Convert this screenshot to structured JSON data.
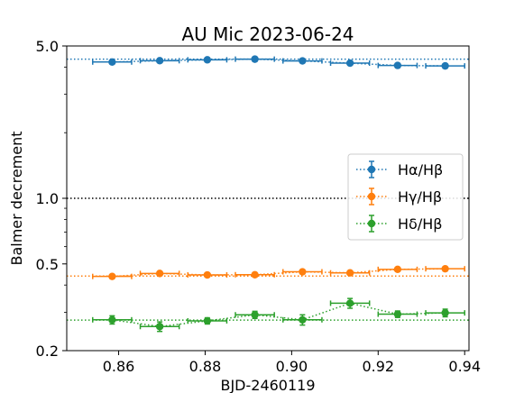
{
  "chart_data": {
    "type": "scatter",
    "title": "AU Mic 2023-06-24",
    "xlabel": "BJD-2460119",
    "ylabel": "Balmer decrement",
    "yscale": "log",
    "xlim": [
      0.848,
      0.941
    ],
    "ylim": [
      0.2,
      5.0
    ],
    "xticks": [
      0.86,
      0.88,
      0.9,
      0.92,
      0.94
    ],
    "xtick_labels": [
      "0.86",
      "0.88",
      "0.90",
      "0.92",
      "0.94"
    ],
    "yticks": [
      0.2,
      0.5,
      1.0,
      5.0
    ],
    "ytick_labels": [
      "0.2",
      "0.5",
      "1.0",
      "5.0"
    ],
    "reference_lines": [
      {
        "y": 4.35,
        "color": "#1f77b4",
        "style": "dotted"
      },
      {
        "y": 1.0,
        "color": "#000000",
        "style": "dotted"
      },
      {
        "y": 0.44,
        "color": "#ff7f0e",
        "style": "dotted"
      },
      {
        "y": 0.276,
        "color": "#2ca02c",
        "style": "dotted"
      }
    ],
    "legend_position": "center-right",
    "series": [
      {
        "name": "Hα/Hβ",
        "color": "#1f77b4",
        "x": [
          0.8585,
          0.8695,
          0.8805,
          0.8915,
          0.9025,
          0.9135,
          0.9245,
          0.9355
        ],
        "xerr": [
          0.0045,
          0.0045,
          0.0045,
          0.0045,
          0.0045,
          0.0045,
          0.0045,
          0.0045
        ],
        "y": [
          4.22,
          4.28,
          4.32,
          4.35,
          4.27,
          4.17,
          4.07,
          4.05
        ],
        "yerr": [
          0.03,
          0.03,
          0.03,
          0.03,
          0.03,
          0.03,
          0.03,
          0.03
        ]
      },
      {
        "name": "Hγ/Hβ",
        "color": "#ff7f0e",
        "x": [
          0.8585,
          0.8695,
          0.8805,
          0.8915,
          0.9025,
          0.9135,
          0.9245,
          0.9355
        ],
        "xerr": [
          0.0045,
          0.0045,
          0.0045,
          0.0045,
          0.0045,
          0.0045,
          0.0045,
          0.0045
        ],
        "y": [
          0.438,
          0.452,
          0.445,
          0.446,
          0.46,
          0.455,
          0.472,
          0.475
        ],
        "yerr": [
          0.004,
          0.004,
          0.004,
          0.004,
          0.004,
          0.004,
          0.004,
          0.004
        ]
      },
      {
        "name": "Hδ/Hβ",
        "color": "#2ca02c",
        "x": [
          0.8585,
          0.8695,
          0.8805,
          0.8915,
          0.9025,
          0.9135,
          0.9245,
          0.9355
        ],
        "xerr": [
          0.0045,
          0.0045,
          0.0045,
          0.0045,
          0.0045,
          0.0045,
          0.0045,
          0.0045
        ],
        "y": [
          0.277,
          0.258,
          0.274,
          0.292,
          0.277,
          0.33,
          0.294,
          0.298
        ],
        "yerr": [
          0.012,
          0.013,
          0.009,
          0.011,
          0.015,
          0.017,
          0.01,
          0.012
        ]
      }
    ]
  }
}
